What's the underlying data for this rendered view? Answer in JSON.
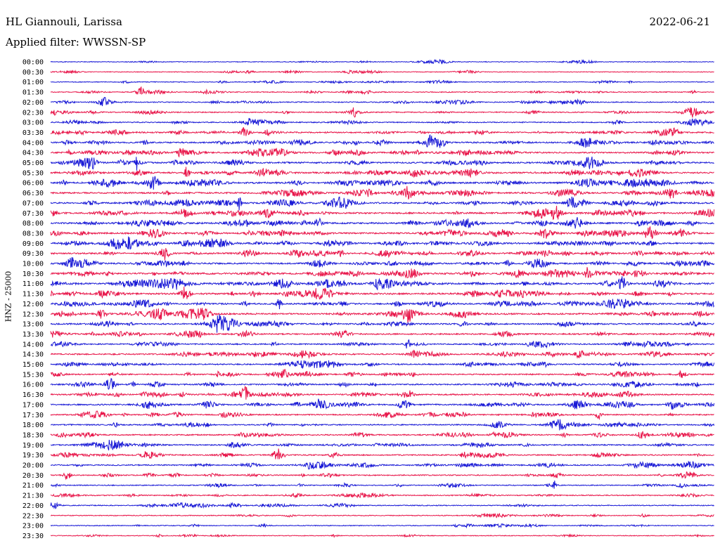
{
  "header": {
    "station": "HL Giannouli, Larissa",
    "filter": "Applied filter: WWSSN-SP",
    "date": "2022-06-21"
  },
  "chart_data": {
    "type": "line",
    "title": "HL Giannouli, Larissa",
    "subtitle": "Applied filter: WWSSN-SP",
    "date": "2022-06-21",
    "ylabel": "HNZ - 25000",
    "row_labels": [
      "00:00",
      "00:30",
      "01:00",
      "01:30",
      "02:00",
      "02:30",
      "03:00",
      "03:30",
      "04:00",
      "04:30",
      "05:00",
      "05:30",
      "06:00",
      "06:30",
      "07:00",
      "07:30",
      "08:00",
      "08:30",
      "09:00",
      "09:30",
      "10:00",
      "10:30",
      "11:00",
      "11:30",
      "12:00",
      "12:30",
      "13:00",
      "13:30",
      "14:00",
      "14:30",
      "15:00",
      "15:30",
      "16:00",
      "16:30",
      "17:00",
      "17:30",
      "18:00",
      "18:30",
      "19:00",
      "19:30",
      "20:00",
      "20:30",
      "21:00",
      "21:30",
      "22:00",
      "22:30",
      "23:00",
      "23:30"
    ],
    "colors": [
      "#1a1ad6",
      "#e8164a"
    ],
    "activity": [
      0.15,
      0.12,
      0.18,
      0.25,
      0.32,
      0.35,
      0.38,
      0.55,
      0.62,
      0.65,
      0.7,
      0.75,
      0.78,
      0.72,
      0.7,
      0.75,
      0.78,
      0.72,
      0.75,
      0.7,
      0.72,
      0.78,
      0.8,
      0.78,
      0.7,
      0.72,
      0.65,
      0.58,
      0.5,
      0.55,
      0.5,
      0.52,
      0.55,
      0.58,
      0.6,
      0.5,
      0.48,
      0.5,
      0.5,
      0.48,
      0.45,
      0.4,
      0.3,
      0.32,
      0.28,
      0.2,
      0.18,
      0.15
    ],
    "grid": false
  }
}
